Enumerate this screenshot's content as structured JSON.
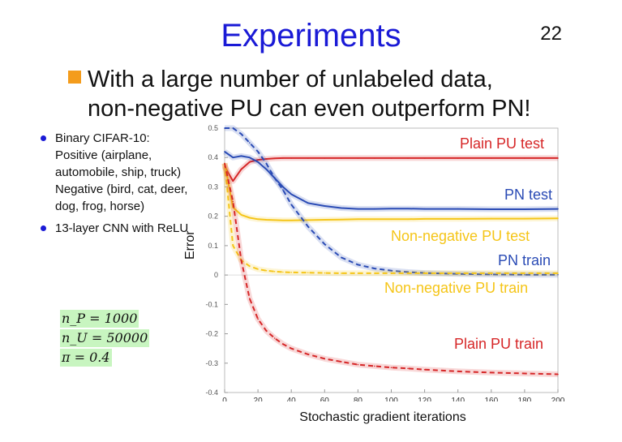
{
  "slide": {
    "title": "Experiments",
    "page_number": "22",
    "headline_line1": "With a large number of unlabeled data,",
    "headline_line2": "non-negative PU can even outperform PN!",
    "bullets": [
      "Binary CIFAR-10: Positive (airplane, automobile, ship, truck) Negative (bird, cat, deer, dog, frog, horse)",
      "13-layer CNN with ReLU"
    ],
    "params": [
      "n_P = 1000",
      "n_U = 50000",
      "π = 0.4"
    ]
  },
  "colors": {
    "plain_pu": "#d62728",
    "pn": "#2a4bb5",
    "nnpu": "#f5c518"
  },
  "chart_data": {
    "type": "line",
    "xlabel": "Stochastic gradient iterations",
    "ylabel": "Error",
    "xlim": [
      0,
      200
    ],
    "ylim": [
      -0.4,
      0.5
    ],
    "xticks": [
      0,
      20,
      40,
      60,
      80,
      100,
      120,
      140,
      160,
      180,
      200
    ],
    "yticks": [
      -0.4,
      -0.3,
      -0.2,
      -0.1,
      0,
      0.1,
      0.2,
      0.3,
      0.4,
      0.5
    ],
    "ytick_labels": [
      "-0.4",
      "-0.3",
      "-0.2",
      "-0.1",
      "0",
      "0.1",
      "0.2",
      "0.3",
      "0.4",
      "0.5"
    ],
    "x": [
      0,
      5,
      10,
      15,
      20,
      25,
      30,
      35,
      40,
      50,
      60,
      70,
      80,
      90,
      100,
      110,
      120,
      140,
      160,
      180,
      200
    ],
    "series": [
      {
        "name": "Plain PU test",
        "style": "solid",
        "color_key": "plain_pu",
        "values": [
          0.37,
          0.32,
          0.36,
          0.385,
          0.392,
          0.395,
          0.397,
          0.398,
          0.398,
          0.398,
          0.398,
          0.398,
          0.398,
          0.398,
          0.398,
          0.398,
          0.398,
          0.398,
          0.398,
          0.398,
          0.398
        ]
      },
      {
        "name": "PN test",
        "style": "solid",
        "color_key": "pn",
        "values": [
          0.42,
          0.4,
          0.405,
          0.4,
          0.385,
          0.36,
          0.33,
          0.3,
          0.275,
          0.245,
          0.235,
          0.228,
          0.225,
          0.225,
          0.226,
          0.226,
          0.225,
          0.225,
          0.224,
          0.224,
          0.225
        ]
      },
      {
        "name": "Non-negative PU test",
        "style": "solid",
        "color_key": "nnpu",
        "values": [
          0.38,
          0.23,
          0.205,
          0.195,
          0.19,
          0.188,
          0.187,
          0.186,
          0.186,
          0.187,
          0.188,
          0.189,
          0.19,
          0.19,
          0.19,
          0.19,
          0.191,
          0.191,
          0.192,
          0.192,
          0.193
        ]
      },
      {
        "name": "PN train",
        "style": "dashed",
        "color_key": "pn",
        "values": [
          0.5,
          0.5,
          0.48,
          0.45,
          0.42,
          0.38,
          0.33,
          0.29,
          0.24,
          0.165,
          0.105,
          0.06,
          0.035,
          0.022,
          0.015,
          0.01,
          0.007,
          0.004,
          0.002,
          0.001,
          0.001
        ]
      },
      {
        "name": "Non-negative PU train",
        "style": "dashed",
        "color_key": "nnpu",
        "values": [
          0.38,
          0.1,
          0.05,
          0.03,
          0.02,
          0.015,
          0.012,
          0.01,
          0.009,
          0.008,
          0.007,
          0.006,
          0.006,
          0.006,
          0.006,
          0.006,
          0.006,
          0.006,
          0.006,
          0.006,
          0.006
        ]
      },
      {
        "name": "Plain PU train",
        "style": "dashed",
        "color_key": "plain_pu",
        "values": [
          0.38,
          0.25,
          0.05,
          -0.08,
          -0.15,
          -0.19,
          -0.215,
          -0.235,
          -0.25,
          -0.27,
          -0.285,
          -0.295,
          -0.305,
          -0.31,
          -0.315,
          -0.318,
          -0.322,
          -0.328,
          -0.332,
          -0.335,
          -0.338
        ]
      }
    ]
  }
}
